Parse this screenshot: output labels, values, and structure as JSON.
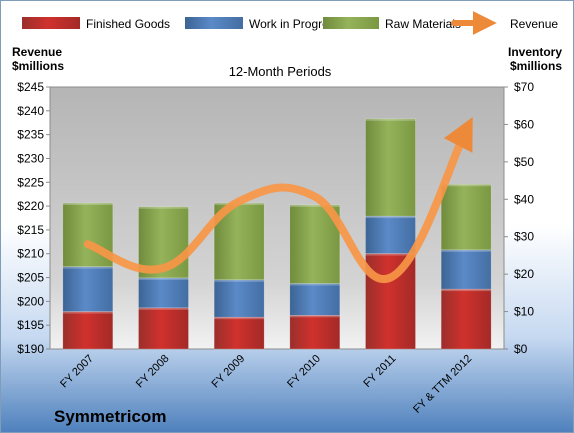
{
  "chart_data": {
    "type": "bar",
    "stacked": true,
    "title": "12-Month Periods",
    "company": "Symmetricom",
    "categories": [
      "FY 2007",
      "FY 2008",
      "FY 2009",
      "FY 2010",
      "FY 2011",
      "FY & TTM 2012"
    ],
    "series": [
      {
        "name": "Finished Goods",
        "axis": "right",
        "color": "#c0504d",
        "values": [
          10,
          11,
          8.5,
          9,
          25.5,
          16
        ]
      },
      {
        "name": "Work in Progress",
        "axis": "right",
        "color": "#4f81bd",
        "values": [
          12,
          8,
          10,
          8.5,
          10,
          10.5
        ]
      },
      {
        "name": "Raw Materials",
        "axis": "right",
        "color": "#9bbb59",
        "values": [
          17,
          19,
          20.5,
          21,
          26,
          17.5
        ]
      },
      {
        "name": "Revenue",
        "axis": "left",
        "type": "line",
        "color": "#f79646",
        "values": [
          212,
          207,
          221,
          222,
          205,
          236
        ]
      }
    ],
    "left_axis": {
      "label": "Revenue $millions",
      "ylim": [
        190,
        245
      ],
      "ticks": [
        "$190",
        "$195",
        "$200",
        "$205",
        "$210",
        "$215",
        "$220",
        "$225",
        "$230",
        "$235",
        "$240",
        "$245"
      ]
    },
    "right_axis": {
      "label": "Inventory $millions",
      "ylim": [
        0,
        70
      ],
      "ticks": [
        "$0",
        "$10",
        "$20",
        "$30",
        "$40",
        "$50",
        "$60",
        "$70"
      ]
    },
    "legend": "top",
    "grid": false
  },
  "labels": {
    "left_axis_line1": "Revenue",
    "left_axis_line2": "$millions",
    "right_axis_line1": "Inventory",
    "right_axis_line2": "$millions"
  }
}
